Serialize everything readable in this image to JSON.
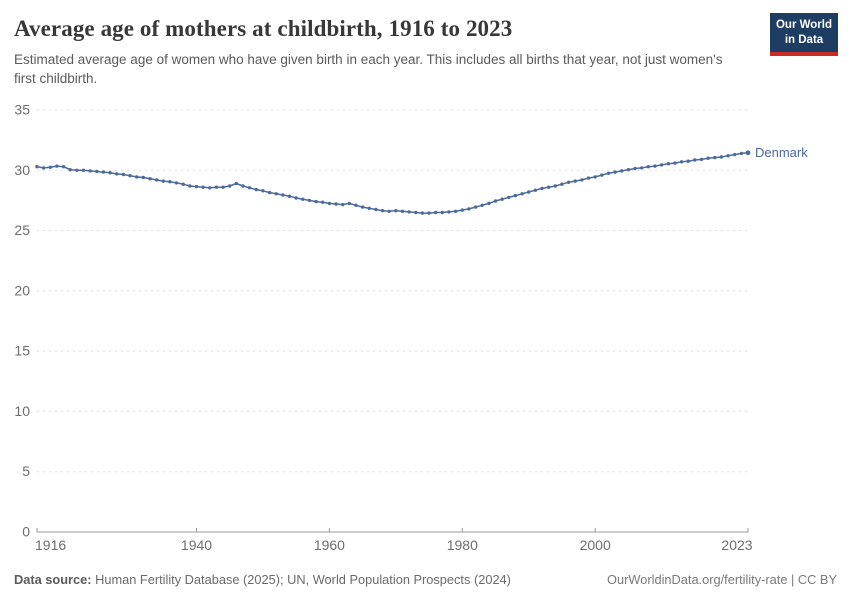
{
  "header": {
    "title": "Average age of mothers at childbirth, 1916 to 2023",
    "subtitle": "Estimated average age of women who have given birth in each year. This includes all births that year, not just women's first childbirth.",
    "logo": {
      "line1": "Our World",
      "line2": "in Data"
    }
  },
  "chart_data": {
    "type": "line",
    "title": "Average age of mothers at childbirth, 1916 to 2023",
    "xlabel": "",
    "ylabel": "",
    "xlim": [
      1916,
      2023
    ],
    "ylim": [
      0,
      35
    ],
    "x_ticks": [
      1916,
      1940,
      1960,
      1980,
      2000,
      2023
    ],
    "y_ticks": [
      0,
      5,
      10,
      15,
      20,
      25,
      30,
      35
    ],
    "grid": "horizontal-dashed",
    "legend_position": "end-of-line",
    "line_color": "#4c6a9c",
    "years": [
      1916,
      1917,
      1918,
      1919,
      1920,
      1921,
      1922,
      1923,
      1924,
      1925,
      1926,
      1927,
      1928,
      1929,
      1930,
      1931,
      1932,
      1933,
      1934,
      1935,
      1936,
      1937,
      1938,
      1939,
      1940,
      1941,
      1942,
      1943,
      1944,
      1945,
      1946,
      1947,
      1948,
      1949,
      1950,
      1951,
      1952,
      1953,
      1954,
      1955,
      1956,
      1957,
      1958,
      1959,
      1960,
      1961,
      1962,
      1963,
      1964,
      1965,
      1966,
      1967,
      1968,
      1969,
      1970,
      1971,
      1972,
      1973,
      1974,
      1975,
      1976,
      1977,
      1978,
      1979,
      1980,
      1981,
      1982,
      1983,
      1984,
      1985,
      1986,
      1987,
      1988,
      1989,
      1990,
      1991,
      1992,
      1993,
      1994,
      1995,
      1996,
      1997,
      1998,
      1999,
      2000,
      2001,
      2002,
      2003,
      2004,
      2005,
      2006,
      2007,
      2008,
      2009,
      2010,
      2011,
      2012,
      2013,
      2014,
      2015,
      2016,
      2017,
      2018,
      2019,
      2020,
      2021,
      2022,
      2023
    ],
    "series": [
      {
        "name": "Denmark",
        "values": [
          30.3,
          30.2,
          30.25,
          30.35,
          30.3,
          30.05,
          30.0,
          30.0,
          29.95,
          29.9,
          29.85,
          29.8,
          29.7,
          29.65,
          29.55,
          29.45,
          29.4,
          29.3,
          29.2,
          29.1,
          29.05,
          28.95,
          28.85,
          28.7,
          28.65,
          28.6,
          28.55,
          28.6,
          28.6,
          28.7,
          28.9,
          28.7,
          28.55,
          28.4,
          28.3,
          28.15,
          28.05,
          27.95,
          27.85,
          27.7,
          27.6,
          27.5,
          27.4,
          27.35,
          27.25,
          27.2,
          27.15,
          27.25,
          27.1,
          26.95,
          26.85,
          26.75,
          26.65,
          26.6,
          26.65,
          26.6,
          26.55,
          26.5,
          26.45,
          26.45,
          26.5,
          26.5,
          26.55,
          26.6,
          26.7,
          26.8,
          26.95,
          27.1,
          27.25,
          27.45,
          27.6,
          27.75,
          27.9,
          28.05,
          28.2,
          28.35,
          28.5,
          28.6,
          28.7,
          28.85,
          29.0,
          29.1,
          29.2,
          29.35,
          29.45,
          29.6,
          29.75,
          29.85,
          29.95,
          30.05,
          30.15,
          30.2,
          30.3,
          30.35,
          30.45,
          30.55,
          30.6,
          30.7,
          30.75,
          30.85,
          30.9,
          31.0,
          31.05,
          31.1,
          31.2,
          31.3,
          31.4,
          31.45
        ]
      }
    ]
  },
  "colors": {
    "line": "#4c6a9c",
    "logo_background": "#1d3d63",
    "logo_stripe": "#cc2b24",
    "axis": "#999999",
    "gridline": "#dddddd"
  },
  "footer": {
    "source_label": "Data source:",
    "source_text": " Human Fertility Database (2025); UN, World Population Prospects (2024)",
    "credit": "OurWorldinData.org/fertility-rate | CC BY"
  }
}
